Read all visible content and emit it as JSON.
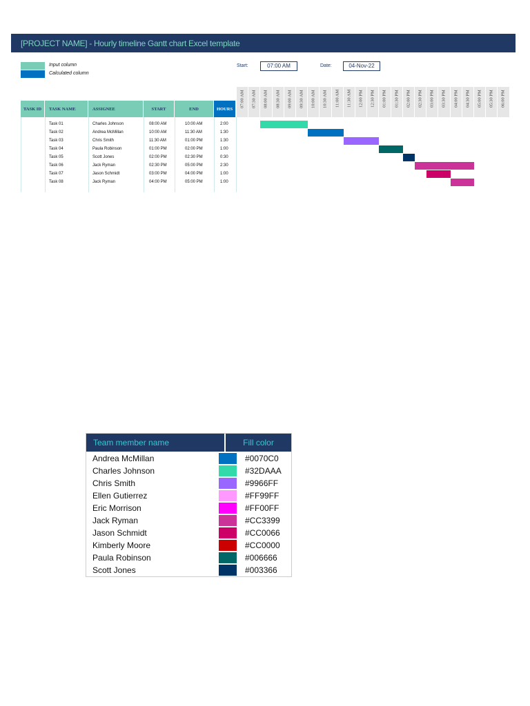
{
  "title": "[PROJECT NAME] - Hourly timeline Gantt chart Excel template",
  "legend": [
    {
      "label": "Input column",
      "color": "#79cdb7"
    },
    {
      "label": "Calculated column",
      "color": "#0070c0"
    }
  ],
  "start_label": "Start:",
  "start_value": "07:00 AM",
  "date_label": "Date:",
  "date_value": "04-Nov-22",
  "columns": [
    "TASK ID",
    "TASK NAME",
    "ASSIGNEE",
    "START",
    "END",
    "HOURS"
  ],
  "timeline": [
    "07:00 AM",
    "07:30 AM",
    "08:00 AM",
    "08:30 AM",
    "09:00 AM",
    "09:30 AM",
    "10:00 AM",
    "10:30 AM",
    "11:00 AM",
    "11:30 AM",
    "12:00 PM",
    "12:30 PM",
    "01:00 PM",
    "01:30 PM",
    "02:00 PM",
    "02:30 PM",
    "03:00 PM",
    "03:30 PM",
    "04:00 PM",
    "04:30 PM",
    "05:00 PM",
    "05:30 PM",
    "06:00 PM"
  ],
  "tasks": [
    {
      "name": "Task 01",
      "assignee": "Charles Johnson",
      "start": "08:00 AM",
      "end": "10:00 AM",
      "hours": "2:00",
      "color": "#32DAAA"
    },
    {
      "name": "Task 02",
      "assignee": "Andrea McMillan",
      "start": "10:00 AM",
      "end": "11:30 AM",
      "hours": "1:30",
      "color": "#0070C0"
    },
    {
      "name": "Task 03",
      "assignee": "Chris Smith",
      "start": "11:30 AM",
      "end": "01:00 PM",
      "hours": "1:30",
      "color": "#9966FF"
    },
    {
      "name": "Task 04",
      "assignee": "Paula Robinson",
      "start": "01:00 PM",
      "end": "02:00 PM",
      "hours": "1:00",
      "color": "#006666"
    },
    {
      "name": "Task 05",
      "assignee": "Scott Jones",
      "start": "02:00 PM",
      "end": "02:30 PM",
      "hours": "0:30",
      "color": "#003366"
    },
    {
      "name": "Task 06",
      "assignee": "Jack Ryman",
      "start": "02:30 PM",
      "end": "05:00 PM",
      "hours": "2:30",
      "color": "#CC3399"
    },
    {
      "name": "Task 07",
      "assignee": "Jason Schmidt",
      "start": "03:00 PM",
      "end": "04:00 PM",
      "hours": "1:00",
      "color": "#CC0066"
    },
    {
      "name": "Task 08",
      "assignee": "Jack Ryman",
      "start": "04:00 PM",
      "end": "05:00 PM",
      "hours": "1:00",
      "color": "#CC3399"
    }
  ],
  "color_table": {
    "headers": [
      "Team member name",
      "Fill color"
    ],
    "rows": [
      {
        "name": "Andrea McMillan",
        "hex": "#0070C0"
      },
      {
        "name": "Charles Johnson",
        "hex": "#32DAAA"
      },
      {
        "name": "Chris Smith",
        "hex": "#9966FF"
      },
      {
        "name": "Ellen Gutierrez",
        "hex": "#FF99FF"
      },
      {
        "name": "Eric Morrison",
        "hex": "#FF00FF"
      },
      {
        "name": "Jack Ryman",
        "hex": "#CC3399"
      },
      {
        "name": "Jason Schmidt",
        "hex": "#CC0066"
      },
      {
        "name": "Kimberly Moore",
        "hex": "#CC0000"
      },
      {
        "name": "Paula Robinson",
        "hex": "#006666"
      },
      {
        "name": "Scott Jones",
        "hex": "#003366"
      }
    ]
  }
}
